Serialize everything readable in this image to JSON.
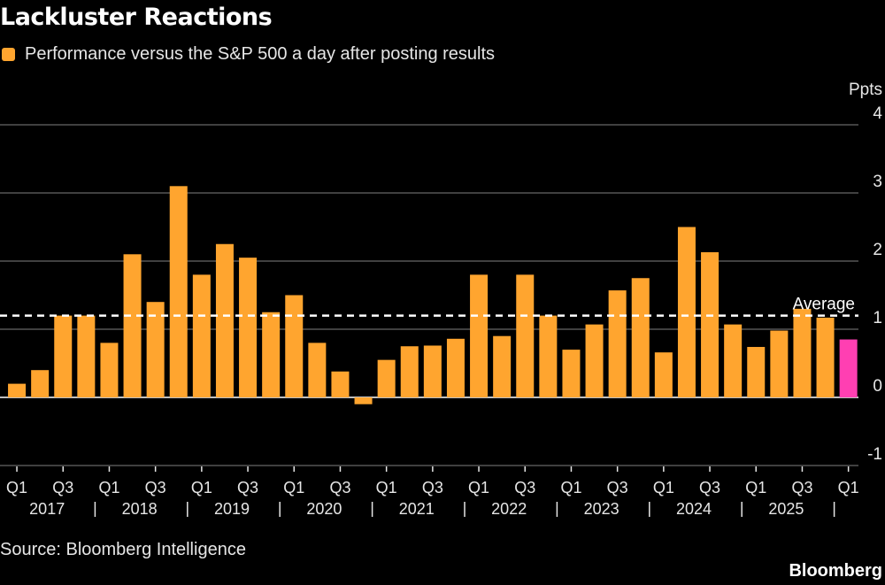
{
  "title": "Lackluster Reactions",
  "legend": {
    "label": "Performance versus the S&P 500 a day after posting results"
  },
  "source": "Source: Bloomberg Intelligence",
  "brand": "Bloomberg",
  "colors": {
    "bar": "#ffa52f",
    "highlight": "#ff3fb2",
    "grid": "#555555",
    "text": "#e6e6e6",
    "average_line": "#ffffff"
  },
  "chart_data": {
    "type": "bar",
    "ylabel": "Ppts",
    "ylim": [
      -1,
      4
    ],
    "yticks": [
      4,
      3,
      2,
      1,
      0,
      -1
    ],
    "average": {
      "label": "Average",
      "value": 1.2
    },
    "categories": [
      "2017 Q1",
      "2017 Q2",
      "2017 Q3",
      "2017 Q4",
      "2018 Q1",
      "2018 Q2",
      "2018 Q3",
      "2018 Q4",
      "2019 Q1",
      "2019 Q2",
      "2019 Q3",
      "2019 Q4",
      "2020 Q1",
      "2020 Q2",
      "2020 Q3",
      "2020 Q4",
      "2021 Q1",
      "2021 Q2",
      "2021 Q3",
      "2021 Q4",
      "2022 Q1",
      "2022 Q2",
      "2022 Q3",
      "2022 Q4",
      "2023 Q1",
      "2023 Q2",
      "2023 Q3",
      "2023 Q4",
      "2024 Q1",
      "2024 Q2",
      "2024 Q3",
      "2024 Q4",
      "2025 Q1",
      "2025 Q2",
      "2025 Q3",
      "2025 Q4",
      "2026 Q1"
    ],
    "values": [
      0.2,
      0.4,
      1.2,
      1.2,
      0.8,
      2.1,
      1.4,
      3.1,
      1.8,
      2.25,
      2.05,
      1.25,
      1.5,
      0.8,
      0.38,
      -0.1,
      0.55,
      0.75,
      0.76,
      0.86,
      1.8,
      0.9,
      1.8,
      1.2,
      0.7,
      1.07,
      1.57,
      1.75,
      0.66,
      2.5,
      2.13,
      1.07,
      0.74,
      0.98,
      1.3,
      1.17,
      0.85
    ],
    "highlight_index": 36,
    "x_quarter_labels": [
      "Q1",
      "Q3",
      "Q1",
      "Q3",
      "Q1",
      "Q3",
      "Q1",
      "Q3",
      "Q1",
      "Q3",
      "Q1",
      "Q3",
      "Q1",
      "Q3",
      "Q1",
      "Q3",
      "Q1",
      "Q3",
      "Q1"
    ],
    "x_year_labels": [
      "2017",
      "2018",
      "2019",
      "2020",
      "2021",
      "2022",
      "2023",
      "2024",
      "2025"
    ]
  }
}
